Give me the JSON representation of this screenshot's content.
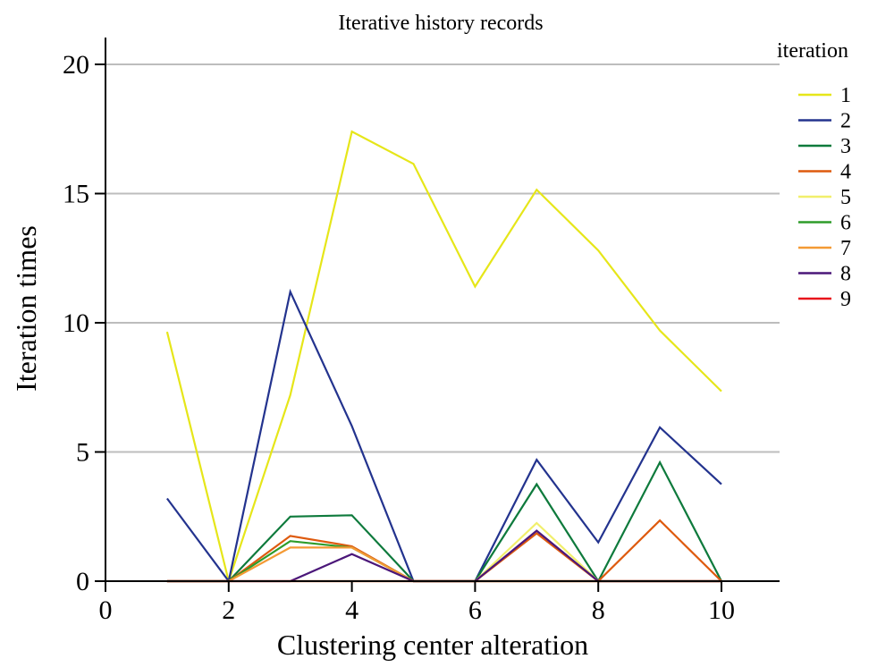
{
  "chart_data": {
    "type": "line",
    "title": "Iterative history records",
    "xlabel": "Clustering center alteration",
    "ylabel": "Iteration times",
    "xlim": [
      0,
      11
    ],
    "ylim": [
      0,
      21
    ],
    "xticks": [
      0,
      2,
      4,
      6,
      8,
      10
    ],
    "yticks": [
      0,
      5,
      10,
      15,
      20
    ],
    "grid": "horizontal",
    "legend": {
      "title": "iteration",
      "placement": "right"
    },
    "x": [
      1,
      2,
      3,
      4,
      5,
      6,
      7,
      8,
      9,
      10
    ],
    "series": [
      {
        "name": "1",
        "color": "#e6e619",
        "values": [
          9.65,
          0,
          7.2,
          17.4,
          16.15,
          11.4,
          15.15,
          12.8,
          9.7,
          7.35
        ]
      },
      {
        "name": "2",
        "color": "#23338e",
        "values": [
          3.2,
          0,
          11.2,
          6.0,
          0,
          0,
          4.7,
          1.5,
          5.95,
          3.75
        ]
      },
      {
        "name": "3",
        "color": "#0e7a3c",
        "values": [
          0,
          0,
          2.5,
          2.55,
          0,
          0,
          3.75,
          0,
          4.6,
          0
        ]
      },
      {
        "name": "4",
        "color": "#de5a0e",
        "values": [
          0,
          0,
          1.75,
          1.35,
          0,
          0,
          1.85,
          0,
          2.35,
          0
        ]
      },
      {
        "name": "5",
        "color": "#f1ef6c",
        "values": [
          0,
          0,
          0,
          0,
          0,
          0,
          2.25,
          0,
          0,
          0
        ]
      },
      {
        "name": "6",
        "color": "#2e9c2a",
        "values": [
          0,
          0,
          1.55,
          1.3,
          0,
          0,
          0,
          0,
          0,
          0
        ]
      },
      {
        "name": "7",
        "color": "#f49a34",
        "values": [
          0,
          0,
          1.3,
          1.3,
          0,
          0,
          0,
          0,
          0,
          0
        ]
      },
      {
        "name": "8",
        "color": "#4b1779",
        "values": [
          0,
          0,
          0,
          1.05,
          0,
          0,
          1.95,
          0,
          0,
          0
        ]
      },
      {
        "name": "9",
        "color": "#e8151b",
        "values": [
          0,
          0,
          0,
          0,
          0,
          0,
          0,
          0,
          0,
          0
        ]
      }
    ]
  }
}
